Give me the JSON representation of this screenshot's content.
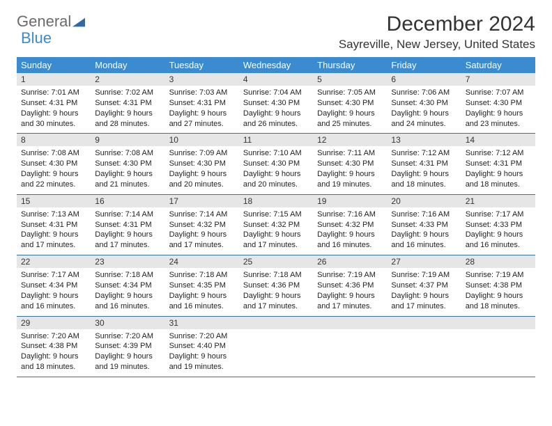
{
  "logo": {
    "part1": "General",
    "part2": "Blue"
  },
  "title": "December 2024",
  "subtitle": "Sayreville, New Jersey, United States",
  "colors": {
    "header_bg": "#3b8bd0",
    "header_text": "#ffffff",
    "daynum_bg": "#e6e6e6",
    "week_border": "#3b6fa3",
    "text": "#333333"
  },
  "days_of_week": [
    "Sunday",
    "Monday",
    "Tuesday",
    "Wednesday",
    "Thursday",
    "Friday",
    "Saturday"
  ],
  "weeks": [
    [
      {
        "n": "1",
        "sunrise": "7:01 AM",
        "sunset": "4:31 PM",
        "hrs": "9",
        "mins": "30"
      },
      {
        "n": "2",
        "sunrise": "7:02 AM",
        "sunset": "4:31 PM",
        "hrs": "9",
        "mins": "28"
      },
      {
        "n": "3",
        "sunrise": "7:03 AM",
        "sunset": "4:31 PM",
        "hrs": "9",
        "mins": "27"
      },
      {
        "n": "4",
        "sunrise": "7:04 AM",
        "sunset": "4:30 PM",
        "hrs": "9",
        "mins": "26"
      },
      {
        "n": "5",
        "sunrise": "7:05 AM",
        "sunset": "4:30 PM",
        "hrs": "9",
        "mins": "25"
      },
      {
        "n": "6",
        "sunrise": "7:06 AM",
        "sunset": "4:30 PM",
        "hrs": "9",
        "mins": "24"
      },
      {
        "n": "7",
        "sunrise": "7:07 AM",
        "sunset": "4:30 PM",
        "hrs": "9",
        "mins": "23"
      }
    ],
    [
      {
        "n": "8",
        "sunrise": "7:08 AM",
        "sunset": "4:30 PM",
        "hrs": "9",
        "mins": "22"
      },
      {
        "n": "9",
        "sunrise": "7:08 AM",
        "sunset": "4:30 PM",
        "hrs": "9",
        "mins": "21"
      },
      {
        "n": "10",
        "sunrise": "7:09 AM",
        "sunset": "4:30 PM",
        "hrs": "9",
        "mins": "20"
      },
      {
        "n": "11",
        "sunrise": "7:10 AM",
        "sunset": "4:30 PM",
        "hrs": "9",
        "mins": "20"
      },
      {
        "n": "12",
        "sunrise": "7:11 AM",
        "sunset": "4:30 PM",
        "hrs": "9",
        "mins": "19"
      },
      {
        "n": "13",
        "sunrise": "7:12 AM",
        "sunset": "4:31 PM",
        "hrs": "9",
        "mins": "18"
      },
      {
        "n": "14",
        "sunrise": "7:12 AM",
        "sunset": "4:31 PM",
        "hrs": "9",
        "mins": "18"
      }
    ],
    [
      {
        "n": "15",
        "sunrise": "7:13 AM",
        "sunset": "4:31 PM",
        "hrs": "9",
        "mins": "17"
      },
      {
        "n": "16",
        "sunrise": "7:14 AM",
        "sunset": "4:31 PM",
        "hrs": "9",
        "mins": "17"
      },
      {
        "n": "17",
        "sunrise": "7:14 AM",
        "sunset": "4:32 PM",
        "hrs": "9",
        "mins": "17"
      },
      {
        "n": "18",
        "sunrise": "7:15 AM",
        "sunset": "4:32 PM",
        "hrs": "9",
        "mins": "17"
      },
      {
        "n": "19",
        "sunrise": "7:16 AM",
        "sunset": "4:32 PM",
        "hrs": "9",
        "mins": "16"
      },
      {
        "n": "20",
        "sunrise": "7:16 AM",
        "sunset": "4:33 PM",
        "hrs": "9",
        "mins": "16"
      },
      {
        "n": "21",
        "sunrise": "7:17 AM",
        "sunset": "4:33 PM",
        "hrs": "9",
        "mins": "16"
      }
    ],
    [
      {
        "n": "22",
        "sunrise": "7:17 AM",
        "sunset": "4:34 PM",
        "hrs": "9",
        "mins": "16"
      },
      {
        "n": "23",
        "sunrise": "7:18 AM",
        "sunset": "4:34 PM",
        "hrs": "9",
        "mins": "16"
      },
      {
        "n": "24",
        "sunrise": "7:18 AM",
        "sunset": "4:35 PM",
        "hrs": "9",
        "mins": "16"
      },
      {
        "n": "25",
        "sunrise": "7:18 AM",
        "sunset": "4:36 PM",
        "hrs": "9",
        "mins": "17"
      },
      {
        "n": "26",
        "sunrise": "7:19 AM",
        "sunset": "4:36 PM",
        "hrs": "9",
        "mins": "17"
      },
      {
        "n": "27",
        "sunrise": "7:19 AM",
        "sunset": "4:37 PM",
        "hrs": "9",
        "mins": "17"
      },
      {
        "n": "28",
        "sunrise": "7:19 AM",
        "sunset": "4:38 PM",
        "hrs": "9",
        "mins": "18"
      }
    ],
    [
      {
        "n": "29",
        "sunrise": "7:20 AM",
        "sunset": "4:38 PM",
        "hrs": "9",
        "mins": "18"
      },
      {
        "n": "30",
        "sunrise": "7:20 AM",
        "sunset": "4:39 PM",
        "hrs": "9",
        "mins": "19"
      },
      {
        "n": "31",
        "sunrise": "7:20 AM",
        "sunset": "4:40 PM",
        "hrs": "9",
        "mins": "19"
      },
      {
        "empty": true
      },
      {
        "empty": true
      },
      {
        "empty": true
      },
      {
        "empty": true
      }
    ]
  ]
}
